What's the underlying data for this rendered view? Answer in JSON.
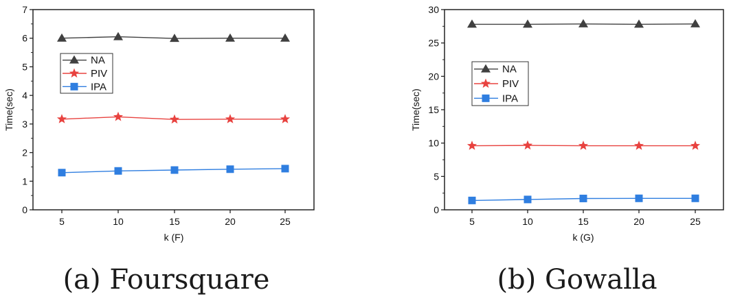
{
  "chart_data": [
    {
      "type": "line",
      "caption": "(a) Foursquare",
      "xlabel": "k (F)",
      "ylabel": "Time(sec)",
      "categories": [
        5,
        10,
        15,
        20,
        25
      ],
      "xticks": [
        "5",
        "10",
        "15",
        "20",
        "25"
      ],
      "ylim": [
        0,
        7
      ],
      "yticks": [
        "0",
        "1",
        "2",
        "3",
        "4",
        "5",
        "6",
        "7"
      ],
      "legend_position": "upper-left",
      "series": [
        {
          "name": "NA",
          "marker": "triangle",
          "color": "#404040",
          "values": [
            6.0,
            6.05,
            5.99,
            6.0,
            6.0
          ]
        },
        {
          "name": "PIV",
          "marker": "star",
          "color": "#e8423f",
          "values": [
            3.17,
            3.25,
            3.16,
            3.17,
            3.17
          ]
        },
        {
          "name": "IPA",
          "marker": "square",
          "color": "#2f7ee0",
          "values": [
            1.3,
            1.36,
            1.39,
            1.42,
            1.44
          ]
        }
      ]
    },
    {
      "type": "line",
      "caption": "(b) Gowalla",
      "xlabel": "k (G)",
      "ylabel": "Time(sec)",
      "categories": [
        5,
        10,
        15,
        20,
        25
      ],
      "xticks": [
        "5",
        "10",
        "15",
        "20",
        "25"
      ],
      "ylim": [
        0,
        30
      ],
      "yticks": [
        "0",
        "5",
        "10",
        "15",
        "20",
        "25",
        "30"
      ],
      "legend_position": "upper-left",
      "series": [
        {
          "name": "NA",
          "marker": "triangle",
          "color": "#404040",
          "values": [
            27.8,
            27.8,
            27.85,
            27.8,
            27.85
          ]
        },
        {
          "name": "PIV",
          "marker": "star",
          "color": "#e8423f",
          "values": [
            9.6,
            9.65,
            9.6,
            9.6,
            9.6
          ]
        },
        {
          "name": "IPA",
          "marker": "square",
          "color": "#2f7ee0",
          "values": [
            1.4,
            1.55,
            1.7,
            1.72,
            1.72
          ]
        }
      ]
    }
  ]
}
